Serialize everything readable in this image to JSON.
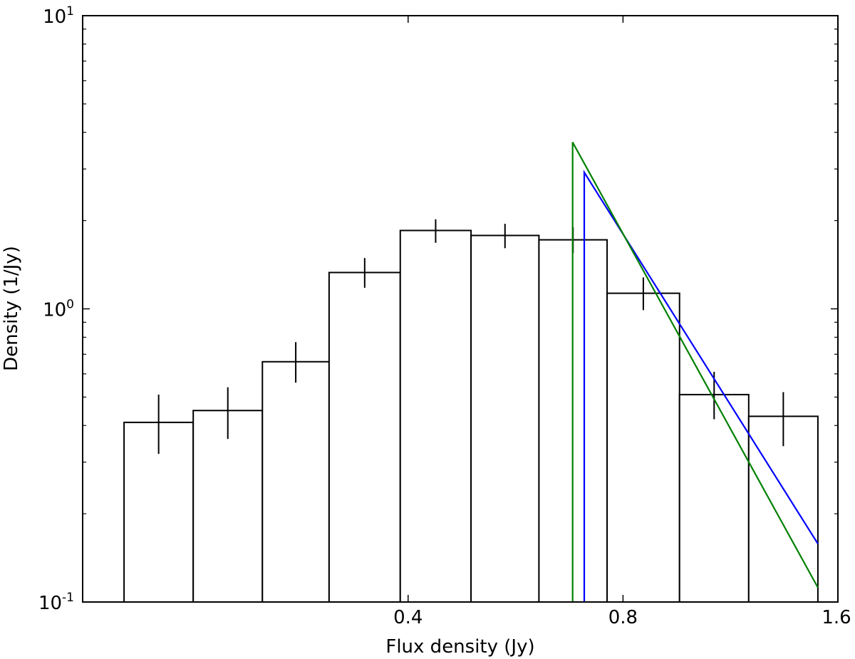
{
  "chart_data": {
    "type": "bar",
    "xlabel": "Flux density (Jy)",
    "ylabel": "Density (1/Jy)",
    "xscale": "log",
    "yscale": "log",
    "xlim": [
      0.14,
      1.6
    ],
    "ylim": [
      0.1,
      10
    ],
    "grid": false,
    "x_ticks": [
      {
        "value": 0.4,
        "label": "0.4"
      },
      {
        "value": 0.8,
        "label": "0.8"
      },
      {
        "value": 1.6,
        "label": "1.6"
      }
    ],
    "y_ticks": [
      {
        "value": 0.1,
        "base": "10",
        "exp": "-1"
      },
      {
        "value": 1,
        "base": "10",
        "exp": "0"
      },
      {
        "value": 10,
        "base": "10",
        "exp": "1"
      }
    ],
    "histogram": {
      "bin_edges": [
        0.16,
        0.2,
        0.25,
        0.31,
        0.39,
        0.49,
        0.61,
        0.76,
        0.96,
        1.2,
        1.5
      ],
      "values": [
        0.41,
        0.45,
        0.66,
        1.33,
        1.85,
        1.78,
        1.72,
        1.13,
        0.51,
        0.43
      ],
      "error_low": [
        0.32,
        0.36,
        0.56,
        1.18,
        1.68,
        1.61,
        1.55,
        0.99,
        0.42,
        0.34
      ],
      "error_high": [
        0.51,
        0.54,
        0.77,
        1.49,
        2.02,
        1.95,
        1.9,
        1.28,
        0.61,
        0.52
      ],
      "color": "#000000"
    },
    "series": [
      {
        "x": [
          0.706,
          0.706,
          1.5
        ],
        "y": [
          0.1,
          2.92,
          0.158
        ],
        "color": "#0000ff"
      },
      {
        "x": [
          0.68,
          0.68,
          1.5
        ],
        "y": [
          0.1,
          3.7,
          0.112
        ],
        "color": "#008000"
      }
    ]
  }
}
